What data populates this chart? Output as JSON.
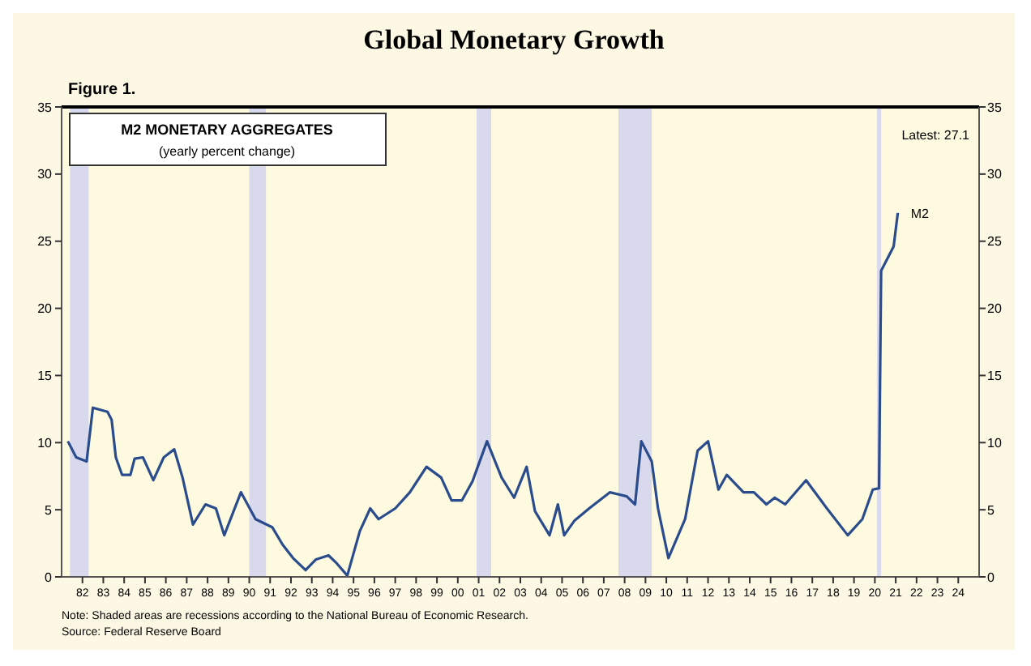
{
  "chart_data": {
    "type": "line",
    "title": "Global Monetary Growth",
    "annotations": [
      "Figure 1.",
      "M2 MONETARY AGGREGATES",
      "(yearly percent change)",
      "Latest: 27.1",
      {
        "text": "M2",
        "x": 2021.1,
        "y": 27.1
      },
      "Note: Shaded areas are recessions according to the National Bureau of Economic Research.",
      "Source: Federal Reserve Board"
    ],
    "x": [
      1981.3,
      1981.7,
      1982.2,
      1982.5,
      1983.2,
      1983.4,
      1983.6,
      1983.9,
      1984.3,
      1984.5,
      1984.9,
      1985.4,
      1985.9,
      1986.4,
      1986.8,
      1987.3,
      1987.9,
      1988.4,
      1988.8,
      1989.6,
      1990.3,
      1991.1,
      1991.6,
      1992.1,
      1992.7,
      1993.2,
      1993.8,
      1994.2,
      1994.7,
      1995.3,
      1995.8,
      1996.2,
      1997.0,
      1997.7,
      1998.5,
      1999.2,
      1999.7,
      2000.2,
      2000.7,
      2001.4,
      2002.1,
      2002.7,
      2003.3,
      2003.7,
      2004.4,
      2004.8,
      2005.1,
      2005.6,
      2006.3,
      2007.3,
      2008.1,
      2008.5,
      2008.8,
      2009.3,
      2009.6,
      2010.1,
      2010.9,
      2011.5,
      2012.0,
      2012.5,
      2012.9,
      2013.7,
      2014.2,
      2014.8,
      2015.2,
      2015.7,
      2016.7,
      2017.7,
      2018.7,
      2019.4,
      2019.9,
      2020.2,
      2020.3,
      2020.7,
      2020.9,
      2021.1
    ],
    "series": [
      {
        "color": "#2b4c8c",
        "values": [
          10.1,
          8.9,
          8.6,
          12.6,
          12.3,
          11.7,
          8.9,
          7.6,
          7.6,
          8.8,
          8.9,
          7.2,
          8.9,
          9.5,
          7.4,
          3.9,
          5.4,
          5.1,
          3.1,
          6.3,
          4.3,
          3.7,
          2.4,
          1.4,
          0.5,
          1.3,
          1.6,
          1.0,
          0.1,
          3.4,
          5.1,
          4.3,
          5.1,
          6.3,
          8.2,
          7.4,
          5.7,
          5.7,
          7.1,
          10.1,
          7.4,
          5.9,
          8.2,
          4.9,
          3.1,
          5.4,
          3.1,
          4.2,
          5.1,
          6.3,
          6.0,
          5.4,
          10.1,
          8.6,
          5.1,
          1.4,
          4.3,
          9.4,
          10.1,
          6.5,
          7.6,
          6.3,
          6.3,
          5.4,
          5.9,
          5.4,
          7.2,
          5.1,
          3.1,
          4.3,
          6.5,
          6.6,
          22.8,
          24.0,
          24.6,
          27.1
        ]
      }
    ],
    "xlim": [
      1981,
      2025
    ],
    "xticks": [
      {
        "value": 1982,
        "label": "82"
      },
      {
        "value": 1983,
        "label": "83"
      },
      {
        "value": 1984,
        "label": "84"
      },
      {
        "value": 1985,
        "label": "85"
      },
      {
        "value": 1986,
        "label": "86"
      },
      {
        "value": 1987,
        "label": "87"
      },
      {
        "value": 1988,
        "label": "88"
      },
      {
        "value": 1989,
        "label": "89"
      },
      {
        "value": 1990,
        "label": "90"
      },
      {
        "value": 1991,
        "label": "91"
      },
      {
        "value": 1992,
        "label": "92"
      },
      {
        "value": 1993,
        "label": "93"
      },
      {
        "value": 1994,
        "label": "94"
      },
      {
        "value": 1995,
        "label": "95"
      },
      {
        "value": 1996,
        "label": "96"
      },
      {
        "value": 1997,
        "label": "97"
      },
      {
        "value": 1998,
        "label": "98"
      },
      {
        "value": 1999,
        "label": "99"
      },
      {
        "value": 2000,
        "label": "00"
      },
      {
        "value": 2001,
        "label": "01"
      },
      {
        "value": 2002,
        "label": "02"
      },
      {
        "value": 2003,
        "label": "03"
      },
      {
        "value": 2004,
        "label": "04"
      },
      {
        "value": 2005,
        "label": "05"
      },
      {
        "value": 2006,
        "label": "06"
      },
      {
        "value": 2007,
        "label": "07"
      },
      {
        "value": 2008,
        "label": "08"
      },
      {
        "value": 2009,
        "label": "09"
      },
      {
        "value": 2010,
        "label": "10"
      },
      {
        "value": 2011,
        "label": "11"
      },
      {
        "value": 2012,
        "label": "12"
      },
      {
        "value": 2013,
        "label": "13"
      },
      {
        "value": 2014,
        "label": "14"
      },
      {
        "value": 2015,
        "label": "15"
      },
      {
        "value": 2016,
        "label": "16"
      },
      {
        "value": 2017,
        "label": "17"
      },
      {
        "value": 2018,
        "label": "18"
      },
      {
        "value": 2019,
        "label": "19"
      },
      {
        "value": 2020,
        "label": "20"
      },
      {
        "value": 2021,
        "label": "21"
      },
      {
        "value": 2022,
        "label": "22"
      },
      {
        "value": 2023,
        "label": "23"
      },
      {
        "value": 2024,
        "label": "24"
      }
    ],
    "ylim": [
      0,
      35
    ],
    "yticks": [
      0,
      5,
      10,
      15,
      20,
      25,
      30,
      35
    ],
    "y2lim": [
      0,
      35
    ],
    "y2ticks": [
      0,
      5,
      10,
      15,
      20,
      25,
      30,
      35
    ],
    "bands": [
      {
        "axis": "x",
        "from": 1981.4,
        "to": 1982.3,
        "color": "#d9d9ee"
      },
      {
        "axis": "x",
        "from": 1990.0,
        "to": 1990.8,
        "color": "#d9d9ee"
      },
      {
        "axis": "x",
        "from": 2000.9,
        "to": 2001.6,
        "color": "#d9d9ee"
      },
      {
        "axis": "x",
        "from": 2007.7,
        "to": 2009.3,
        "color": "#d9d9ee"
      },
      {
        "axis": "x",
        "from": 2020.1,
        "to": 2020.3,
        "color": "#d9d9ee"
      }
    ],
    "grid": false,
    "marker": "none",
    "line_style": "solid"
  }
}
